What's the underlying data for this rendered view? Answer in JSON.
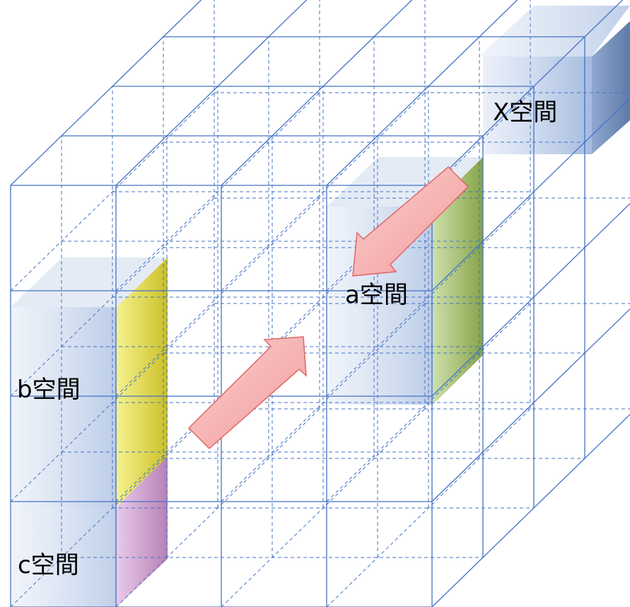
{
  "labels": {
    "x_space": "X空間",
    "a_space": "a空間",
    "b_space": "b空間",
    "c_space": "c空間"
  },
  "colors": {
    "grid_line": "#4472c4",
    "arrow_fill": "#f4a3a3",
    "arrow_stroke": "#e06666",
    "block_blue": "#b4c7e7",
    "side_yellow": "#d4cc2a",
    "side_green": "#8fae4e",
    "side_purple": "#c08dc0",
    "side_steel": "#6f88b5",
    "background": "#ffffff"
  },
  "icons": [
    "arrow-down-left-icon",
    "arrow-up-right-icon"
  ]
}
